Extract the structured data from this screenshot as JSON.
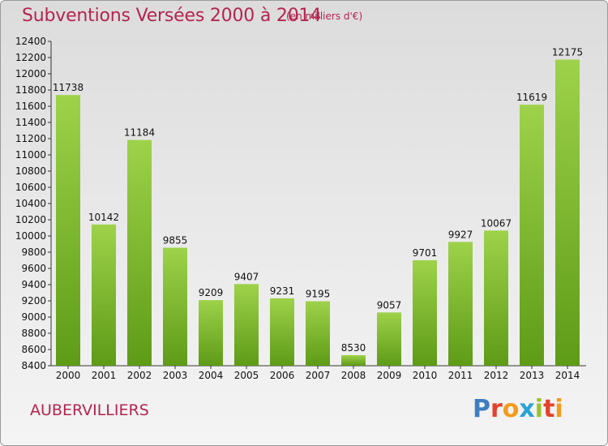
{
  "chart_data": {
    "type": "bar",
    "title": "Subventions Versées 2000 à 2014",
    "subtitle": "(en milliers d'€)",
    "categories": [
      "2000",
      "2001",
      "2002",
      "2003",
      "2004",
      "2005",
      "2006",
      "2007",
      "2008",
      "2009",
      "2010",
      "2011",
      "2012",
      "2013",
      "2014"
    ],
    "values": [
      11738,
      10142,
      11184,
      9855,
      9209,
      9407,
      9231,
      9195,
      8530,
      9057,
      9701,
      9927,
      10067,
      11619,
      12175
    ],
    "ylim": [
      8400,
      12400
    ],
    "yticks": [
      8400,
      8600,
      8800,
      9000,
      9200,
      9400,
      9600,
      9800,
      10000,
      10200,
      10400,
      10600,
      10800,
      11000,
      11200,
      11400,
      11600,
      11800,
      12000,
      12200,
      12400
    ],
    "xlabel": "",
    "ylabel": "",
    "grid": false,
    "legend": "none",
    "bar_color_top": "#9ed24a",
    "bar_color_bottom": "#5e9b17"
  },
  "footer": {
    "city": "AUBERVILLIERS",
    "brand": "Proxiti"
  },
  "colors": {
    "title": "#b4244f",
    "brand_letters": [
      "#3f7ec0",
      "#e2432c",
      "#f39b1b",
      "#2aa3d6",
      "#9cc22a",
      "#e2432c",
      "#f39b1b"
    ]
  }
}
